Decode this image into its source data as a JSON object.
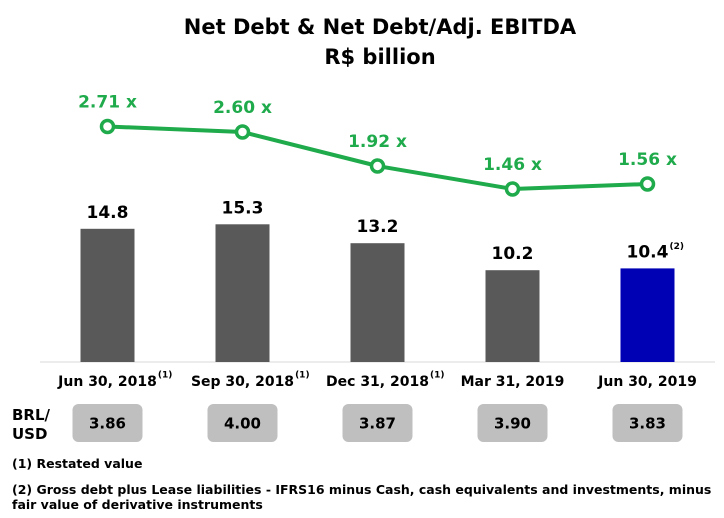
{
  "chart_data": {
    "type": "bar",
    "title": "Net Debt & Net Debt/Adj. EBITDA",
    "subtitle": "R$ billion",
    "categories": [
      "Jun 30, 2018",
      "Sep 30, 2018",
      "Dec 31, 2018",
      "Mar 31, 2019",
      "Jun 30, 2019"
    ],
    "category_notes": [
      "(1)",
      "(1)",
      "(1)",
      null,
      null
    ],
    "series": [
      {
        "type": "bar",
        "values": [
          14.8,
          15.3,
          13.2,
          10.2,
          10.4
        ],
        "value_notes": [
          null,
          null,
          null,
          null,
          "(2)"
        ],
        "colors": [
          "#595959",
          "#595959",
          "#595959",
          "#595959",
          "#0000b4"
        ]
      },
      {
        "type": "line",
        "axis": "y2",
        "color": "#1faa4b",
        "values": [
          2.71,
          2.6,
          1.92,
          1.46,
          1.56
        ],
        "value_labels": [
          "2.71 x",
          "2.60 x",
          "1.92 x",
          "1.46 x",
          "1.56 x"
        ]
      }
    ],
    "ylim": [
      0,
      30
    ],
    "y2lim": [
      -2,
      3.4
    ]
  },
  "fx_table": {
    "label": "BRL/ USD",
    "values": [
      "3.86",
      "4.00",
      "3.87",
      "3.90",
      "3.83"
    ]
  },
  "notes": [
    "(1) Restated value",
    "(2) Gross debt plus Lease liabilities - IFRS16 minus Cash, cash equivalents and investments, minus fair value of derivative instruments"
  ]
}
